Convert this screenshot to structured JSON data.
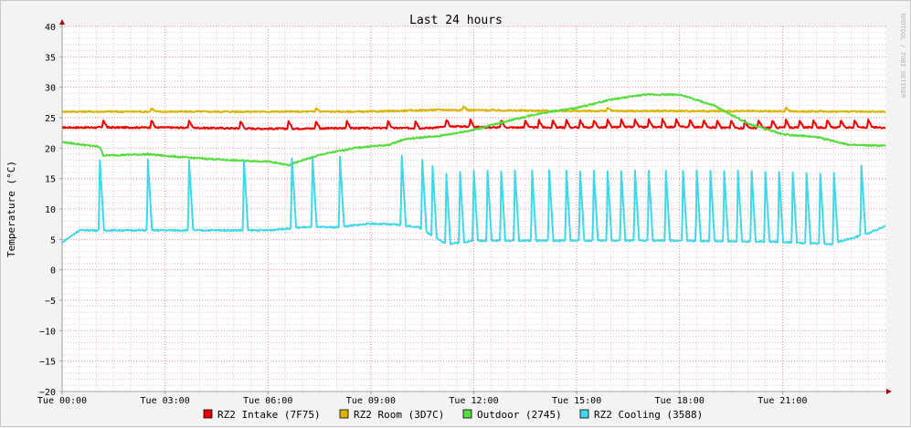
{
  "chart_data": {
    "type": "line",
    "title": "Last 24 hours",
    "ylabel": "Temperature (°C)",
    "watermark": "RRDTOOL / TOBI OETIKER",
    "ylim": [
      -20,
      40
    ],
    "xlim": [
      0,
      24
    ],
    "y_ticks": [
      "40",
      "35",
      "30",
      "25",
      "20",
      "15",
      "10",
      "5",
      "0",
      "−5",
      "−10",
      "−15",
      "−20"
    ],
    "x_ticks": [
      {
        "h": 0,
        "label": "Tue 00:00"
      },
      {
        "h": 3,
        "label": "Tue 03:00"
      },
      {
        "h": 6,
        "label": "Tue 06:00"
      },
      {
        "h": 9,
        "label": "Tue 09:00"
      },
      {
        "h": 12,
        "label": "Tue 12:00"
      },
      {
        "h": 15,
        "label": "Tue 15:00"
      },
      {
        "h": 18,
        "label": "Tue 18:00"
      },
      {
        "h": 21,
        "label": "Tue 21:00"
      }
    ],
    "colors": {
      "background": "#f3f3f3",
      "plot": "#ffffff",
      "grid_minor": "#ebc3c3",
      "grid_major": "#e48a8a",
      "axis": "#a0a0a0",
      "arrow": "#a01010"
    },
    "series": [
      {
        "name": "RZ2 Intake (7F75)",
        "color": "#ee0000",
        "baseline": [
          [
            0,
            23.4
          ],
          [
            3,
            23.4
          ],
          [
            6,
            23.2
          ],
          [
            9,
            23.3
          ],
          [
            10.6,
            23.3
          ],
          [
            11.5,
            23.6
          ],
          [
            12.5,
            23.4
          ],
          [
            15,
            23.4
          ],
          [
            18,
            23.5
          ],
          [
            20,
            23.3
          ],
          [
            21,
            23.4
          ],
          [
            24,
            23.4
          ]
        ],
        "spikes": [
          1.2,
          2.6,
          3.7,
          5.2,
          6.6,
          7.4,
          8.3,
          9.5,
          10.3,
          11.2,
          11.9,
          12.8,
          13.5,
          13.9,
          14.3,
          14.7,
          15.1,
          15.5,
          15.9,
          16.3,
          16.7,
          17.1,
          17.5,
          17.9,
          18.3,
          18.7,
          19.1,
          19.5,
          19.9,
          20.3,
          20.7,
          21.1,
          21.5,
          21.9,
          22.3,
          22.7,
          23.1,
          23.5
        ],
        "spike_height": 1.2
      },
      {
        "name": "RZ2 Room (3D7C)",
        "color": "#dcb400",
        "baseline": [
          [
            0,
            26
          ],
          [
            6,
            26
          ],
          [
            9,
            26
          ],
          [
            11,
            26.3
          ],
          [
            15,
            26.1
          ],
          [
            18,
            26.1
          ],
          [
            24,
            26
          ]
        ],
        "spikes": [
          2.6,
          7.4,
          11.7,
          15.9,
          21.1
        ],
        "spike_height": 0.6
      },
      {
        "name": "Outdoor (2745)",
        "color": "#55dd40",
        "baseline": [
          [
            0,
            21
          ],
          [
            1.1,
            20.2
          ],
          [
            1.2,
            18.8
          ],
          [
            2.5,
            19
          ],
          [
            3.5,
            18.5
          ],
          [
            5,
            18
          ],
          [
            6,
            17.8
          ],
          [
            6.6,
            17.2
          ],
          [
            7,
            18
          ],
          [
            7.6,
            19
          ],
          [
            8.5,
            20
          ],
          [
            9,
            20.3
          ],
          [
            9.5,
            20.5
          ],
          [
            10,
            21.5
          ],
          [
            11,
            22
          ],
          [
            12,
            23
          ],
          [
            13,
            24.5
          ],
          [
            14,
            25.8
          ],
          [
            15,
            26.6
          ],
          [
            16,
            28
          ],
          [
            17,
            28.8
          ],
          [
            18,
            28.8
          ],
          [
            19,
            27
          ],
          [
            20,
            24
          ],
          [
            21,
            22.3
          ],
          [
            22,
            21.8
          ],
          [
            23,
            20.5
          ],
          [
            24,
            20.4
          ]
        ],
        "spikes": [],
        "spike_height": 0
      },
      {
        "name": "RZ2 Cooling (3588)",
        "color": "#40d8e8",
        "baseline": [
          [
            0,
            4.5
          ],
          [
            0.5,
            6.5
          ],
          [
            3,
            6.5
          ],
          [
            6,
            6.5
          ],
          [
            7,
            7
          ],
          [
            8,
            7
          ],
          [
            9,
            7.6
          ],
          [
            9.8,
            7.4
          ],
          [
            10.4,
            7
          ],
          [
            11.2,
            4.2
          ],
          [
            12,
            4.8
          ],
          [
            15,
            4.8
          ],
          [
            18,
            4.8
          ],
          [
            21,
            4.6
          ],
          [
            22.4,
            4.2
          ],
          [
            23.5,
            6
          ],
          [
            24,
            7.2
          ]
        ],
        "spikes": [
          1.1,
          2.5,
          3.7,
          5.3,
          6.7,
          7.3,
          8.1,
          9.9,
          10.5,
          10.8,
          11.2,
          11.6,
          12,
          12.4,
          12.8,
          13.2,
          13.7,
          14.2,
          14.7,
          15.1,
          15.5,
          15.9,
          16.3,
          16.7,
          17.1,
          17.6,
          18.1,
          18.5,
          18.9,
          19.3,
          19.7,
          20.1,
          20.5,
          20.9,
          21.3,
          21.7,
          22.1,
          22.5,
          23.3
        ],
        "spike_height": 11.5
      }
    ]
  }
}
